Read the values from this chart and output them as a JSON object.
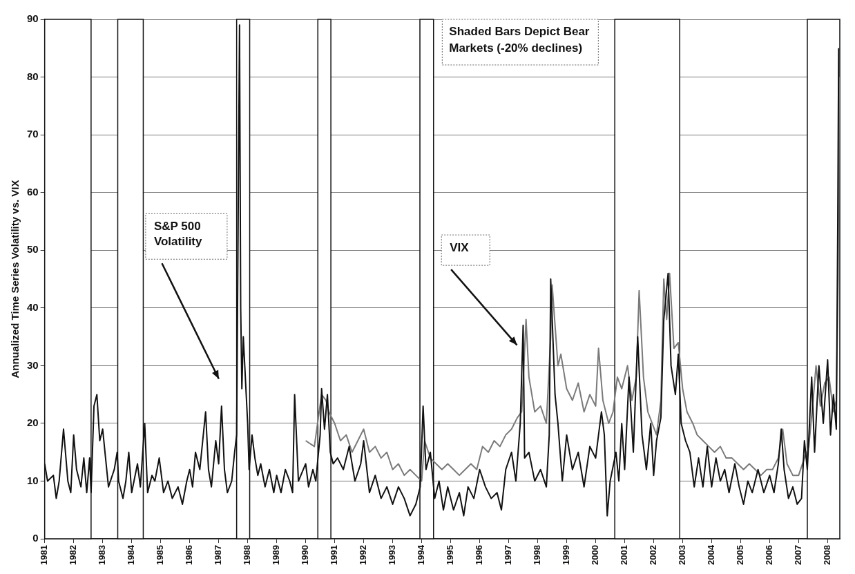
{
  "chart_data": {
    "type": "line",
    "ylabel": "Annualized Time Series Volatility vs. VIX",
    "xlim": [
      1981,
      2008.42
    ],
    "xticks": [
      1981,
      1982,
      1983,
      1984,
      1985,
      1986,
      1987,
      1988,
      1989,
      1990,
      1991,
      1992,
      1993,
      1994,
      1995,
      1996,
      1997,
      1998,
      1999,
      2000,
      2001,
      2002,
      2003,
      2004,
      2005,
      2006,
      2007,
      2008
    ],
    "ylim": [
      0,
      90
    ],
    "yticks": [
      0,
      10,
      20,
      30,
      40,
      50,
      60,
      70,
      80,
      90
    ],
    "grid": "y",
    "legend": false,
    "marker": "none",
    "line_style": "solid",
    "series": [
      {
        "color": "#111111",
        "x": [
          1981.0,
          1981.1,
          1981.3,
          1981.4,
          1981.5,
          1981.65,
          1981.8,
          1981.9,
          1982.0,
          1982.1,
          1982.25,
          1982.35,
          1982.45,
          1982.55,
          1982.6,
          1982.7,
          1982.8,
          1982.9,
          1983.0,
          1983.1,
          1983.2,
          1983.4,
          1983.5,
          1983.55,
          1983.7,
          1983.8,
          1983.9,
          1984.0,
          1984.2,
          1984.3,
          1984.45,
          1984.55,
          1984.7,
          1984.8,
          1984.95,
          1985.1,
          1985.25,
          1985.4,
          1985.6,
          1985.75,
          1985.9,
          1986.0,
          1986.1,
          1986.2,
          1986.35,
          1986.45,
          1986.55,
          1986.65,
          1986.75,
          1986.9,
          1987.0,
          1987.1,
          1987.2,
          1987.3,
          1987.45,
          1987.55,
          1987.62,
          1987.72,
          1987.76,
          1987.8,
          1987.85,
          1987.9,
          1988.0,
          1988.05,
          1988.15,
          1988.25,
          1988.35,
          1988.45,
          1988.6,
          1988.75,
          1988.9,
          1989.0,
          1989.15,
          1989.3,
          1989.45,
          1989.55,
          1989.62,
          1989.75,
          1990.0,
          1990.1,
          1990.25,
          1990.35,
          1990.5,
          1990.55,
          1990.65,
          1990.75,
          1990.85,
          1990.95,
          1991.1,
          1991.3,
          1991.5,
          1991.7,
          1991.9,
          1992.0,
          1992.2,
          1992.4,
          1992.6,
          1992.8,
          1993.0,
          1993.2,
          1993.4,
          1993.6,
          1993.8,
          1993.95,
          1994.05,
          1994.15,
          1994.3,
          1994.45,
          1994.6,
          1994.75,
          1994.9,
          1995.1,
          1995.3,
          1995.45,
          1995.6,
          1995.8,
          1996.0,
          1996.2,
          1996.4,
          1996.6,
          1996.75,
          1996.9,
          1997.1,
          1997.25,
          1997.4,
          1997.5,
          1997.55,
          1997.7,
          1997.9,
          1998.1,
          1998.3,
          1998.4,
          1998.45,
          1998.6,
          1998.7,
          1998.85,
          1999.0,
          1999.2,
          1999.4,
          1999.6,
          1999.8,
          2000.0,
          2000.2,
          2000.3,
          2000.4,
          2000.5,
          2000.7,
          2000.8,
          2000.9,
          2001.0,
          2001.15,
          2001.3,
          2001.45,
          2001.6,
          2001.75,
          2001.9,
          2002.0,
          2002.1,
          2002.25,
          2002.35,
          2002.5,
          2002.6,
          2002.75,
          2002.85,
          2002.95,
          2003.1,
          2003.25,
          2003.4,
          2003.55,
          2003.7,
          2003.85,
          2004.0,
          2004.15,
          2004.3,
          2004.45,
          2004.6,
          2004.8,
          2004.95,
          2005.1,
          2005.25,
          2005.4,
          2005.6,
          2005.8,
          2006.0,
          2006.15,
          2006.3,
          2006.4,
          2006.5,
          2006.65,
          2006.8,
          2006.95,
          2007.1,
          2007.2,
          2007.3,
          2007.45,
          2007.55,
          2007.7,
          2007.85,
          2008.0,
          2008.1,
          2008.2,
          2008.3,
          2008.35,
          2008.38
        ],
        "values": [
          13,
          10,
          11,
          7,
          10,
          19,
          10,
          8,
          18,
          12,
          9,
          14,
          8,
          14,
          8,
          23,
          25,
          17,
          19,
          14,
          9,
          12,
          15,
          10,
          7,
          10,
          15,
          8,
          13,
          9,
          20,
          8,
          11,
          10,
          14,
          8,
          10,
          7,
          9,
          6,
          10,
          12,
          9,
          15,
          12,
          17,
          22,
          12,
          9,
          17,
          13,
          23,
          12,
          8,
          10,
          15,
          18,
          89,
          40,
          26,
          35,
          30,
          20,
          12,
          18,
          14,
          11,
          13,
          9,
          12,
          8,
          11,
          8,
          12,
          10,
          8,
          25,
          10,
          13,
          9,
          12,
          10,
          18,
          26,
          19,
          25,
          15,
          13,
          14,
          12,
          16,
          10,
          13,
          17,
          8,
          11,
          7,
          9,
          6,
          9,
          7,
          4,
          6,
          9,
          23,
          12,
          15,
          7,
          10,
          5,
          9,
          5,
          8,
          4,
          9,
          7,
          12,
          9,
          7,
          8,
          5,
          12,
          15,
          10,
          20,
          37,
          14,
          15,
          10,
          12,
          9,
          18,
          45,
          25,
          20,
          10,
          18,
          12,
          15,
          9,
          16,
          14,
          22,
          18,
          4,
          10,
          15,
          10,
          20,
          12,
          28,
          15,
          35,
          18,
          12,
          20,
          11,
          17,
          21,
          38,
          46,
          30,
          25,
          32,
          20,
          17,
          15,
          9,
          14,
          9,
          16,
          9,
          14,
          10,
          12,
          8,
          13,
          9,
          6,
          10,
          8,
          12,
          8,
          11,
          8,
          13,
          19,
          12,
          7,
          9,
          6,
          7,
          17,
          12,
          28,
          15,
          30,
          20,
          31,
          18,
          25,
          19,
          55,
          85
        ]
      },
      {
        "color": "#7a7a7a",
        "x": [
          1990.0,
          1990.3,
          1990.55,
          1990.7,
          1990.8,
          1991.0,
          1991.2,
          1991.4,
          1991.6,
          1991.8,
          1992.0,
          1992.2,
          1992.4,
          1992.6,
          1992.8,
          1993.0,
          1993.2,
          1993.4,
          1993.6,
          1993.8,
          1994.0,
          1994.1,
          1994.3,
          1994.5,
          1994.7,
          1994.9,
          1995.1,
          1995.3,
          1995.5,
          1995.7,
          1995.9,
          1996.1,
          1996.3,
          1996.5,
          1996.7,
          1996.9,
          1997.1,
          1997.3,
          1997.45,
          1997.6,
          1997.7,
          1997.9,
          1998.1,
          1998.3,
          1998.45,
          1998.5,
          1998.7,
          1998.8,
          1999.0,
          1999.2,
          1999.4,
          1999.6,
          1999.8,
          2000.0,
          2000.1,
          2000.25,
          2000.45,
          2000.6,
          2000.75,
          2000.9,
          2001.1,
          2001.25,
          2001.4,
          2001.5,
          2001.65,
          2001.8,
          2001.95,
          2002.1,
          2002.25,
          2002.35,
          2002.45,
          2002.55,
          2002.7,
          2002.85,
          2003.0,
          2003.15,
          2003.35,
          2003.5,
          2003.7,
          2003.9,
          2004.1,
          2004.3,
          2004.5,
          2004.7,
          2004.9,
          2005.1,
          2005.3,
          2005.5,
          2005.7,
          2005.9,
          2006.1,
          2006.3,
          2006.45,
          2006.6,
          2006.8,
          2007.0,
          2007.2,
          2007.35,
          2007.5,
          2007.6,
          2007.75,
          2007.9,
          2008.05,
          2008.2,
          2008.3,
          2008.36,
          2008.4
        ],
        "values": [
          17,
          16,
          25,
          24,
          22,
          20,
          17,
          18,
          15,
          17,
          19,
          15,
          16,
          14,
          15,
          12,
          13,
          11,
          12,
          11,
          10,
          17,
          14,
          13,
          12,
          13,
          12,
          11,
          12,
          13,
          12,
          16,
          15,
          17,
          16,
          18,
          19,
          21,
          22,
          38,
          28,
          22,
          23,
          20,
          35,
          44,
          30,
          32,
          26,
          24,
          27,
          22,
          25,
          23,
          33,
          24,
          20,
          22,
          28,
          26,
          30,
          24,
          28,
          43,
          28,
          22,
          20,
          18,
          24,
          45,
          38,
          46,
          33,
          34,
          26,
          22,
          20,
          18,
          17,
          16,
          15,
          16,
          14,
          14,
          13,
          12,
          13,
          12,
          11,
          12,
          12,
          14,
          19,
          13,
          11,
          11,
          14,
          16,
          24,
          30,
          23,
          27,
          28,
          22,
          24,
          45,
          80
        ]
      }
    ],
    "bands": [
      {
        "axis": "x",
        "from": 1981.0,
        "to": 1982.6
      },
      {
        "axis": "x",
        "from": 1983.52,
        "to": 1984.4
      },
      {
        "axis": "x",
        "from": 1987.62,
        "to": 1988.07
      },
      {
        "axis": "x",
        "from": 1990.42,
        "to": 1990.87
      },
      {
        "axis": "x",
        "from": 1993.94,
        "to": 1994.41
      },
      {
        "axis": "x",
        "from": 2000.66,
        "to": 2002.9
      },
      {
        "axis": "x",
        "from": 2007.3,
        "to": 2008.42
      }
    ],
    "annotations": [
      "S&P 500 Volatility",
      "VIX",
      "Shaded Bars Depict Bear Markets (-20% declines)"
    ]
  }
}
